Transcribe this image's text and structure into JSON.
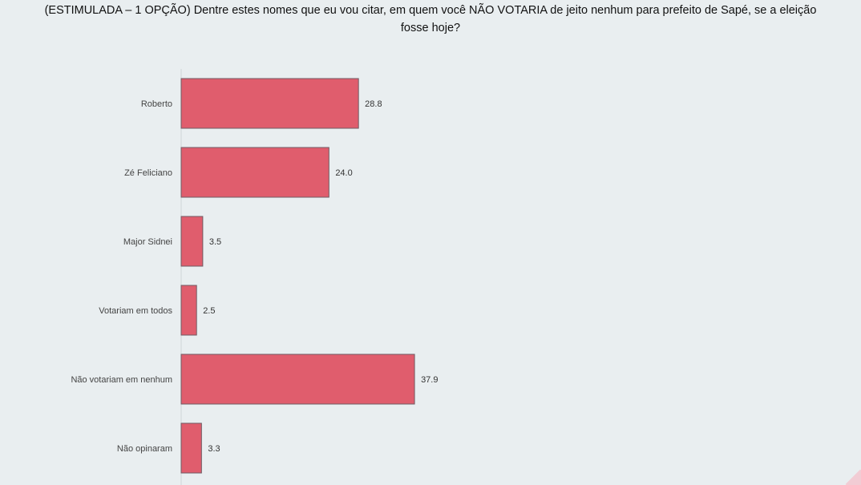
{
  "question": "(ESTIMULADA – 1 OPÇÃO) Dentre estes nomes que eu vou citar, em quem você NÃO VOTARIA de jeito nenhum para prefeito de Sapé, se a eleição\nfosse hoje?",
  "chart_data": {
    "type": "bar",
    "orientation": "horizontal",
    "categories": [
      "Roberto",
      "Zé Feliciano",
      "Major Sidnei",
      "Votariam em todos",
      "Não votariam em nenhum",
      "Não opinaram"
    ],
    "values": [
      28.8,
      24.0,
      3.5,
      2.5,
      37.9,
      3.3
    ],
    "value_labels": [
      "28.8",
      "24.0",
      "3.5",
      "2.5",
      "37.9",
      "3.3"
    ],
    "xlim": [
      0,
      100
    ],
    "grid": false,
    "bar_color": "#e05d6d"
  },
  "colors": {
    "background": "#e9eef0",
    "bar": "#e05d6d",
    "accent_corner": "#f3c8d0"
  }
}
